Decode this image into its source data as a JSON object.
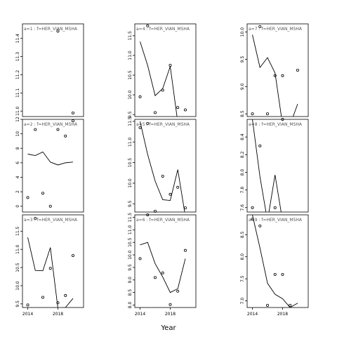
{
  "chart_data": {
    "type": "scatter",
    "xlabel": "Year",
    "x_ticks": [
      "2014",
      "2018"
    ],
    "panels": [
      {
        "label": "a=1 : f=HER_VIAN_MSHA",
        "ylim": [
          10.97,
          11.48
        ],
        "yticks": [
          "11.0",
          "11.1",
          "11.2",
          "11.3",
          "11.4"
        ],
        "points": [
          [
            2018,
            11.44
          ],
          [
            2020,
            10.99
          ]
        ],
        "line": []
      },
      {
        "label": "a=2 : f=HER_VIAN_MSHA",
        "ylim": [
          -0.8,
          12.0
        ],
        "yticks": [
          "0",
          "2",
          "4",
          "6",
          "8",
          "10",
          "12"
        ],
        "points": [
          [
            2014,
            1.2
          ],
          [
            2015,
            10.6
          ],
          [
            2016,
            1.8
          ],
          [
            2017,
            0.0
          ],
          [
            2018,
            10.6
          ],
          [
            2019,
            9.7
          ],
          [
            2020,
            11.8
          ]
        ],
        "line": [
          [
            2014,
            7.2
          ],
          [
            2015,
            7.0
          ],
          [
            2016,
            7.5
          ],
          [
            2017,
            6.1
          ],
          [
            2018,
            5.7
          ],
          [
            2019,
            6.0
          ],
          [
            2020,
            6.1
          ]
        ]
      },
      {
        "label": "a=3 : f=HER_VIAN_MSHA",
        "ylim": [
          9.4,
          11.95
        ],
        "yticks": [
          "9.5",
          "10.0",
          "10.5",
          "11.0",
          "11.5"
        ],
        "points": [
          [
            2014,
            9.47
          ],
          [
            2015,
            11.85
          ],
          [
            2016,
            9.68
          ],
          [
            2017,
            10.48
          ],
          [
            2018,
            9.53
          ],
          [
            2019,
            9.73
          ],
          [
            2020,
            10.83
          ]
        ],
        "line": [
          [
            2014,
            11.33
          ],
          [
            2015,
            10.42
          ],
          [
            2016,
            10.41
          ],
          [
            2017,
            11.05
          ],
          [
            2018,
            9.38
          ],
          [
            2019,
            9.4
          ],
          [
            2020,
            9.65
          ]
        ]
      },
      {
        "label": "a=4 : f=HER_VIAN_MSHA",
        "ylim": [
          9.45,
          11.8
        ],
        "yticks": [
          "9.5",
          "10.0",
          "10.5",
          "11.0",
          "11.5"
        ],
        "points": [
          [
            2014,
            9.95
          ],
          [
            2015,
            11.75
          ],
          [
            2016,
            9.55
          ],
          [
            2017,
            10.12
          ],
          [
            2018,
            10.75
          ],
          [
            2019,
            9.68
          ],
          [
            2020,
            9.62
          ]
        ],
        "line": [
          [
            2014,
            11.35
          ],
          [
            2015,
            10.75
          ],
          [
            2016,
            9.98
          ],
          [
            2017,
            10.16
          ],
          [
            2018,
            10.72
          ],
          [
            2019,
            9.3
          ]
        ]
      },
      {
        "label": "a=5 : f=HER_VIAN_MSHA",
        "ylim": [
          9.3,
          11.55
        ],
        "yticks": [
          "9.5",
          "10.0",
          "10.5",
          "11.0",
          "11.5"
        ],
        "points": [
          [
            2014,
            11.35
          ],
          [
            2015,
            11.45
          ],
          [
            2016,
            9.32
          ],
          [
            2017,
            10.17
          ],
          [
            2018,
            9.73
          ],
          [
            2019,
            9.9
          ],
          [
            2020,
            9.4
          ]
        ],
        "line": [
          [
            2014,
            11.5
          ],
          [
            2015,
            10.7
          ],
          [
            2016,
            10.05
          ],
          [
            2017,
            9.6
          ],
          [
            2018,
            9.58
          ],
          [
            2019,
            10.33
          ],
          [
            2020,
            9.2
          ]
        ]
      },
      {
        "label": "a=6 : f=HER_VIAN_MSHA",
        "ylim": [
          7.9,
          11.6
        ],
        "yticks": [
          "8.0",
          "8.5",
          "9.0",
          "9.5",
          "10.0",
          "10.5",
          "11.0",
          "11.5"
        ],
        "points": [
          [
            2014,
            9.85
          ],
          [
            2015,
            11.6
          ],
          [
            2016,
            9.1
          ],
          [
            2017,
            9.28
          ],
          [
            2018,
            8.02
          ],
          [
            2019,
            8.55
          ],
          [
            2020,
            10.18
          ]
        ],
        "line": [
          [
            2014,
            10.4
          ],
          [
            2015,
            10.5
          ],
          [
            2016,
            9.65
          ],
          [
            2017,
            9.12
          ],
          [
            2018,
            8.5
          ],
          [
            2019,
            8.65
          ],
          [
            2020,
            9.85
          ]
        ]
      },
      {
        "label": "a=7 : f=HER_VIAN_MSHA",
        "ylim": [
          8.45,
          10.15
        ],
        "yticks": [
          "8.5",
          "9.0",
          "9.5",
          "10.0"
        ],
        "points": [
          [
            2014,
            8.5
          ],
          [
            2015,
            10.1
          ],
          [
            2016,
            8.5
          ],
          [
            2017,
            9.2
          ],
          [
            2018,
            9.2
          ],
          [
            2020,
            9.3
          ]
        ],
        "line": [
          [
            2014,
            9.95
          ],
          [
            2015,
            9.35
          ],
          [
            2016,
            9.53
          ],
          [
            2017,
            9.25
          ],
          [
            2018,
            8.3
          ],
          [
            2019,
            8.3
          ],
          [
            2020,
            8.68
          ]
        ]
      },
      {
        "label": "a=8 : f=HER_VIAN_MSHA",
        "ylim": [
          7.55,
          8.6
        ],
        "yticks": [
          "7.6",
          "7.8",
          "8.0",
          "8.2",
          "8.4"
        ],
        "points": [
          [
            2014,
            7.6
          ],
          [
            2015,
            8.3
          ],
          [
            2017,
            7.6
          ],
          [
            2018,
            8.6
          ]
        ],
        "line": [
          [
            2014,
            8.6
          ],
          [
            2015,
            7.95
          ],
          [
            2016,
            7.45
          ],
          [
            2017,
            7.97
          ],
          [
            2018,
            7.45
          ],
          [
            2019,
            7.45
          ]
        ]
      },
      {
        "label": "a=9 : f=HER_VIAN_MSHA",
        "ylim": [
          6.85,
          8.95
        ],
        "yticks": [
          "7.0",
          "7.5",
          "8.0",
          "8.5"
        ],
        "points": [
          [
            2014,
            8.85
          ],
          [
            2015,
            8.7
          ],
          [
            2016,
            6.9
          ],
          [
            2017,
            7.6
          ],
          [
            2018,
            7.6
          ],
          [
            2019,
            6.9
          ]
        ],
        "line": [
          [
            2014,
            8.95
          ],
          [
            2015,
            8.2
          ],
          [
            2016,
            7.4
          ],
          [
            2017,
            7.15
          ],
          [
            2018,
            7.05
          ],
          [
            2019,
            6.85
          ],
          [
            2020,
            6.95
          ]
        ]
      }
    ]
  }
}
